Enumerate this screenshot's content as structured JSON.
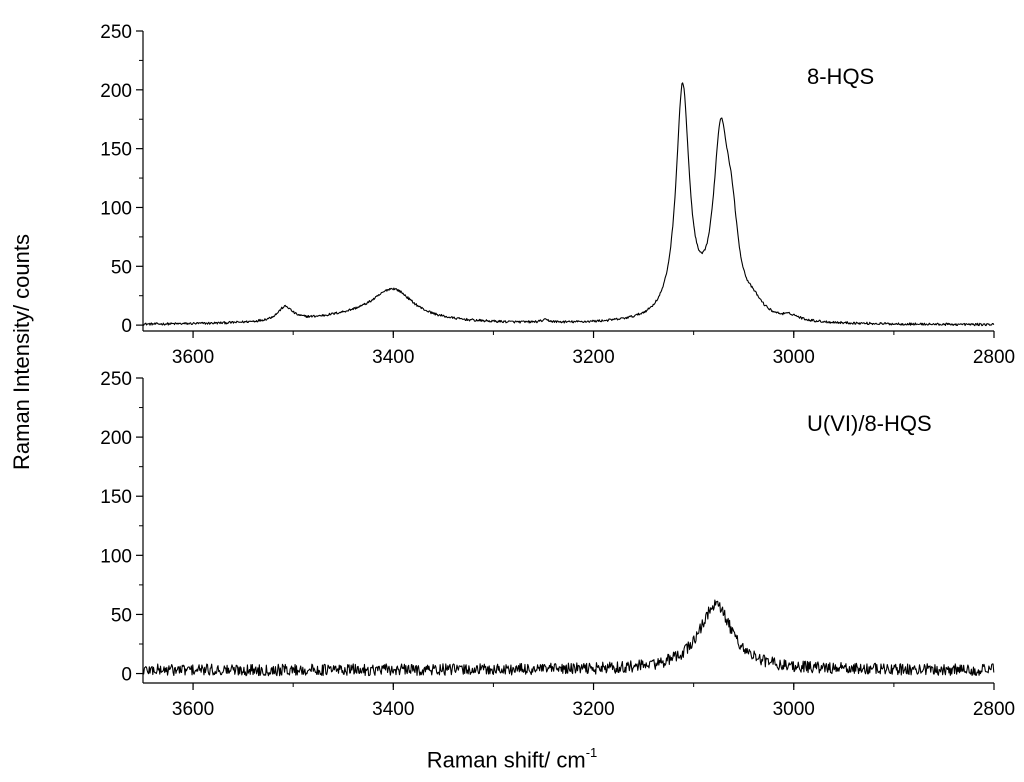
{
  "chart_data": {
    "type": "line",
    "shared_ylabel": "Raman Intensity/ counts",
    "xlabel_main": "Raman shift/ cm",
    "xlabel_sup": "-1",
    "panels": [
      {
        "id": "top",
        "label": "8-HQS",
        "xlim": [
          3650,
          2800
        ],
        "ylim": [
          -5,
          250
        ],
        "xticks": [
          "3600",
          "3400",
          "3200",
          "3000",
          "2800"
        ],
        "xtick_values": [
          3600,
          3400,
          3200,
          3000,
          2800
        ],
        "yticks": [
          "0",
          "50",
          "100",
          "150",
          "200",
          "250"
        ],
        "ytick_values": [
          0,
          50,
          100,
          150,
          200,
          250
        ],
        "noise_amplitude": 1.0,
        "baseline": 0,
        "peaks": [
          {
            "center": 3508,
            "height": 12,
            "width": 9
          },
          {
            "center": 3400,
            "height": 25,
            "width": 24
          },
          {
            "center": 3430,
            "height": 7,
            "width": 60
          },
          {
            "center": 3248,
            "height": 2,
            "width": 5
          },
          {
            "center": 3111,
            "height": 196,
            "width": 8
          },
          {
            "center": 3073,
            "height": 145,
            "width": 9
          },
          {
            "center": 3062,
            "height": 60,
            "width": 8
          },
          {
            "center": 3040,
            "height": 10,
            "width": 12
          },
          {
            "center": 3003,
            "height": 4,
            "width": 10
          }
        ]
      },
      {
        "id": "bottom",
        "label": "U(VI)/8-HQS",
        "xlim": [
          3650,
          2800
        ],
        "ylim": [
          -8,
          250
        ],
        "xticks": [
          "3600",
          "3400",
          "3200",
          "3000",
          "2800"
        ],
        "xtick_values": [
          3600,
          3400,
          3200,
          3000,
          2800
        ],
        "yticks": [
          "0",
          "50",
          "100",
          "150",
          "200",
          "250"
        ],
        "ytick_values": [
          0,
          50,
          100,
          150,
          200,
          250
        ],
        "noise_amplitude": 5.0,
        "baseline": 3,
        "peaks": [
          {
            "center": 3078,
            "height": 55,
            "width": 20
          }
        ]
      }
    ]
  }
}
